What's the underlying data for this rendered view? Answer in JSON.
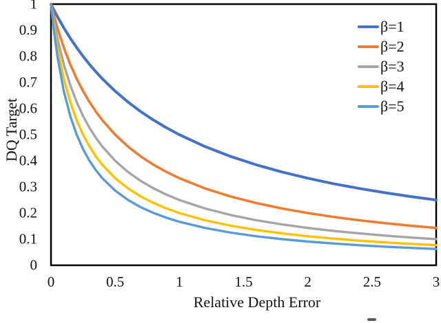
{
  "chart_data": {
    "type": "line",
    "title": "",
    "xlabel": "Relative Depth Error",
    "ylabel": "DQ Target",
    "xlim": [
      0,
      3
    ],
    "ylim": [
      0,
      1
    ],
    "grid": false,
    "axis_color": "#000000",
    "text_color": "#111111",
    "legend_position": "upper-right-inside",
    "x_tick_values": [
      0,
      0.5,
      1,
      1.5,
      2,
      2.5,
      3
    ],
    "x_tick_labels": [
      "0",
      "0.5",
      "1",
      "1.5",
      "2",
      "2.5",
      "3"
    ],
    "y_tick_values": [
      0,
      0.1,
      0.2,
      0.3,
      0.4,
      0.5,
      0.6,
      0.7,
      0.8,
      0.9,
      1
    ],
    "y_tick_labels": [
      "0",
      "0.1",
      "0.2",
      "0.3",
      "0.4",
      "0.5",
      "0.6",
      "0.7",
      "0.8",
      "0.9",
      "1"
    ],
    "x": [
      0,
      0.02,
      0.05,
      0.1,
      0.15,
      0.2,
      0.25,
      0.3,
      0.35,
      0.4,
      0.5,
      0.6,
      0.7,
      0.8,
      0.9,
      1,
      1.2,
      1.4,
      1.6,
      1.8,
      2,
      2.2,
      2.4,
      2.6,
      2.8,
      3
    ],
    "series": [
      {
        "name": "β=1",
        "color": "#4472C4",
        "stroke_width": 4,
        "values": [
          1,
          0.9804,
          0.9524,
          0.9091,
          0.8696,
          0.8333,
          0.8,
          0.7692,
          0.7407,
          0.7143,
          0.6667,
          0.625,
          0.5882,
          0.5556,
          0.5263,
          0.5,
          0.4545,
          0.4167,
          0.3846,
          0.3571,
          0.3333,
          0.3125,
          0.2941,
          0.2778,
          0.2632,
          0.25
        ]
      },
      {
        "name": "β=2",
        "color": "#ED7D31",
        "stroke_width": 3.6,
        "values": [
          1,
          0.9615,
          0.9091,
          0.8333,
          0.7692,
          0.7143,
          0.6667,
          0.625,
          0.5882,
          0.5556,
          0.5,
          0.4545,
          0.4167,
          0.3846,
          0.3571,
          0.3333,
          0.2941,
          0.2632,
          0.2381,
          0.2174,
          0.2,
          0.1852,
          0.1724,
          0.1613,
          0.1515,
          0.1429
        ]
      },
      {
        "name": "β=3",
        "color": "#A5A5A5",
        "stroke_width": 3.4,
        "values": [
          1,
          0.9434,
          0.8696,
          0.7692,
          0.6897,
          0.625,
          0.5714,
          0.5263,
          0.4878,
          0.4545,
          0.4,
          0.3571,
          0.3226,
          0.2941,
          0.2703,
          0.25,
          0.2174,
          0.1923,
          0.1724,
          0.1563,
          0.1429,
          0.1316,
          0.122,
          0.1136,
          0.1064,
          0.1
        ]
      },
      {
        "name": "β=4",
        "color": "#FFC000",
        "stroke_width": 3.4,
        "values": [
          1,
          0.9259,
          0.8333,
          0.7143,
          0.625,
          0.5556,
          0.5,
          0.4545,
          0.4167,
          0.3846,
          0.3333,
          0.2941,
          0.2632,
          0.2381,
          0.2174,
          0.2,
          0.1724,
          0.1515,
          0.1351,
          0.122,
          0.1111,
          0.102,
          0.0943,
          0.0877,
          0.082,
          0.0769
        ]
      },
      {
        "name": "β=5",
        "color": "#5B9BD5",
        "stroke_width": 3.4,
        "values": [
          1,
          0.9091,
          0.8,
          0.6667,
          0.5714,
          0.5,
          0.4444,
          0.4,
          0.3636,
          0.3333,
          0.2857,
          0.25,
          0.2222,
          0.2,
          0.1818,
          0.1667,
          0.1429,
          0.125,
          0.1111,
          0.1,
          0.0909,
          0.0833,
          0.0769,
          0.0714,
          0.0667,
          0.0625
        ]
      }
    ]
  }
}
